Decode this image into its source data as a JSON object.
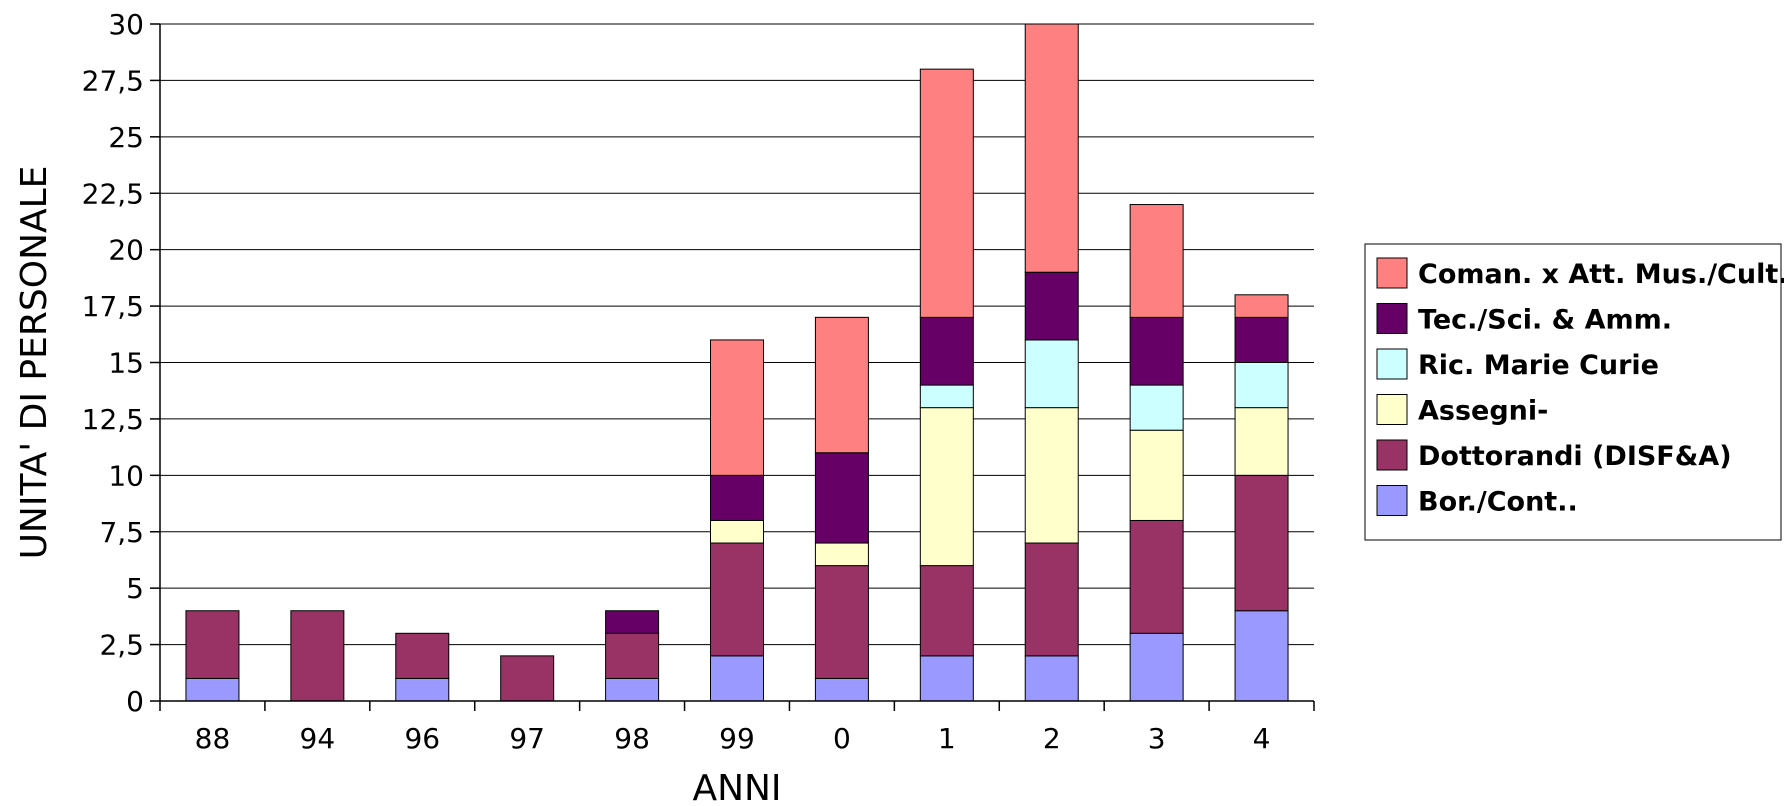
{
  "chart_data": {
    "type": "bar",
    "stacked": true,
    "categories": [
      "88",
      "94",
      "96",
      "97",
      "98",
      "99",
      "0",
      "1",
      "2",
      "3",
      "4"
    ],
    "xlabel": "ANNI",
    "ylabel": "UNITA' DI PERSONALE",
    "ylim": [
      0,
      30
    ],
    "y_ticks": [
      "0",
      "2,5",
      "5",
      "7,5",
      "10",
      "12,5",
      "15",
      "17,5",
      "20",
      "22,5",
      "25",
      "27,5",
      "30"
    ],
    "y_tick_values": [
      0,
      2.5,
      5,
      7.5,
      10,
      12.5,
      15,
      17.5,
      20,
      22.5,
      25,
      27.5,
      30
    ],
    "grid": true,
    "legend_position": "right",
    "series": [
      {
        "name": "Bor./Cont..",
        "color": "#9999ff",
        "values": [
          1,
          0,
          1,
          0,
          1,
          2,
          1,
          2,
          2,
          3,
          4
        ]
      },
      {
        "name": "Dottorandi (DISF&A)",
        "color": "#993366",
        "values": [
          3,
          4,
          2,
          2,
          2,
          5,
          5,
          4,
          5,
          5,
          6
        ]
      },
      {
        "name": "Assegni-",
        "color": "#ffffcc",
        "values": [
          0,
          0,
          0,
          0,
          0,
          1,
          1,
          7,
          6,
          4,
          3
        ]
      },
      {
        "name": "Ric. Marie Curie",
        "color": "#ccffff",
        "values": [
          0,
          0,
          0,
          0,
          0,
          0,
          0,
          1,
          3,
          2,
          2
        ]
      },
      {
        "name": "Tec./Sci. & Amm.",
        "color": "#660066",
        "values": [
          0,
          0,
          0,
          0,
          1,
          2,
          4,
          3,
          3,
          3,
          2
        ]
      },
      {
        "name": "Coman. x Att. Mus./Cult.",
        "color": "#ff8080",
        "values": [
          0,
          0,
          0,
          0,
          0,
          6,
          6,
          11,
          11,
          5,
          1
        ]
      }
    ],
    "legend_order": [
      5,
      4,
      3,
      2,
      1,
      0
    ]
  }
}
